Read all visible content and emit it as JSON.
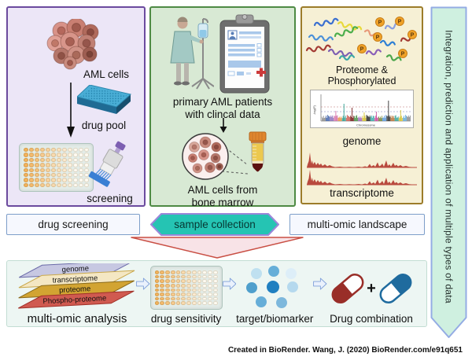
{
  "figure": {
    "panels": {
      "drug_screening": {
        "label": "drug screening",
        "cells_caption": "AML cells",
        "drug_pool_caption": "drug pool",
        "screening_caption": "screening"
      },
      "sample_collection": {
        "label": "sample collection",
        "patients_caption": "primary AML patients\nwith clincal data",
        "bone_marrow_caption": "AML cells from\nbone marrow"
      },
      "multi_omic_landscape": {
        "label": "multi-omic landscape",
        "proteome_caption": "Proteome & Phosphorylated\nproteome",
        "genome_caption": "genome",
        "transcriptome_caption": "transcriptome",
        "phosphate_symbol": "P",
        "manhattan_plot": {
          "ylabel": "-log(P)",
          "xlabel": "Chromosome"
        }
      }
    },
    "banner": "Integration, prediction and application of multiple types of data",
    "workflow": {
      "stack_layers": [
        "genome",
        "transcriptome",
        "proteome",
        "Phospho-proteome"
      ],
      "steps": [
        "multi-omic analysis",
        "drug sensitivity",
        "target/biomarker",
        "Drug combination"
      ],
      "plus_sign": "+"
    },
    "attribution": "Created in BioRender. Wang, J. (2020) BioRender.com/e91q651"
  },
  "colors": {
    "panel_drug_screening_border": "#6b4a9e",
    "panel_drug_screening_bg": "#ece6f7",
    "panel_sample_border": "#4e8a44",
    "panel_sample_bg": "#d8e9d4",
    "panel_omic_border": "#9c7c2a",
    "panel_omic_bg": "#f6f0d5",
    "banner_bg": "#cff0e0",
    "banner_border": "#94ace4",
    "sample_arrow_fill": "#25c4b3",
    "sample_arrow_border": "#9b86d9",
    "label_box_border": "#7d9ec9",
    "triangle_fill": "#f8e3e7",
    "triangle_border": "#c94f44",
    "bottom_panel_bg": "#edf6f3",
    "well_orange": "#f2b25c",
    "capsule_red": "#992e28",
    "capsule_blue": "#1f6b9e",
    "track_red": "#b94a3e"
  }
}
